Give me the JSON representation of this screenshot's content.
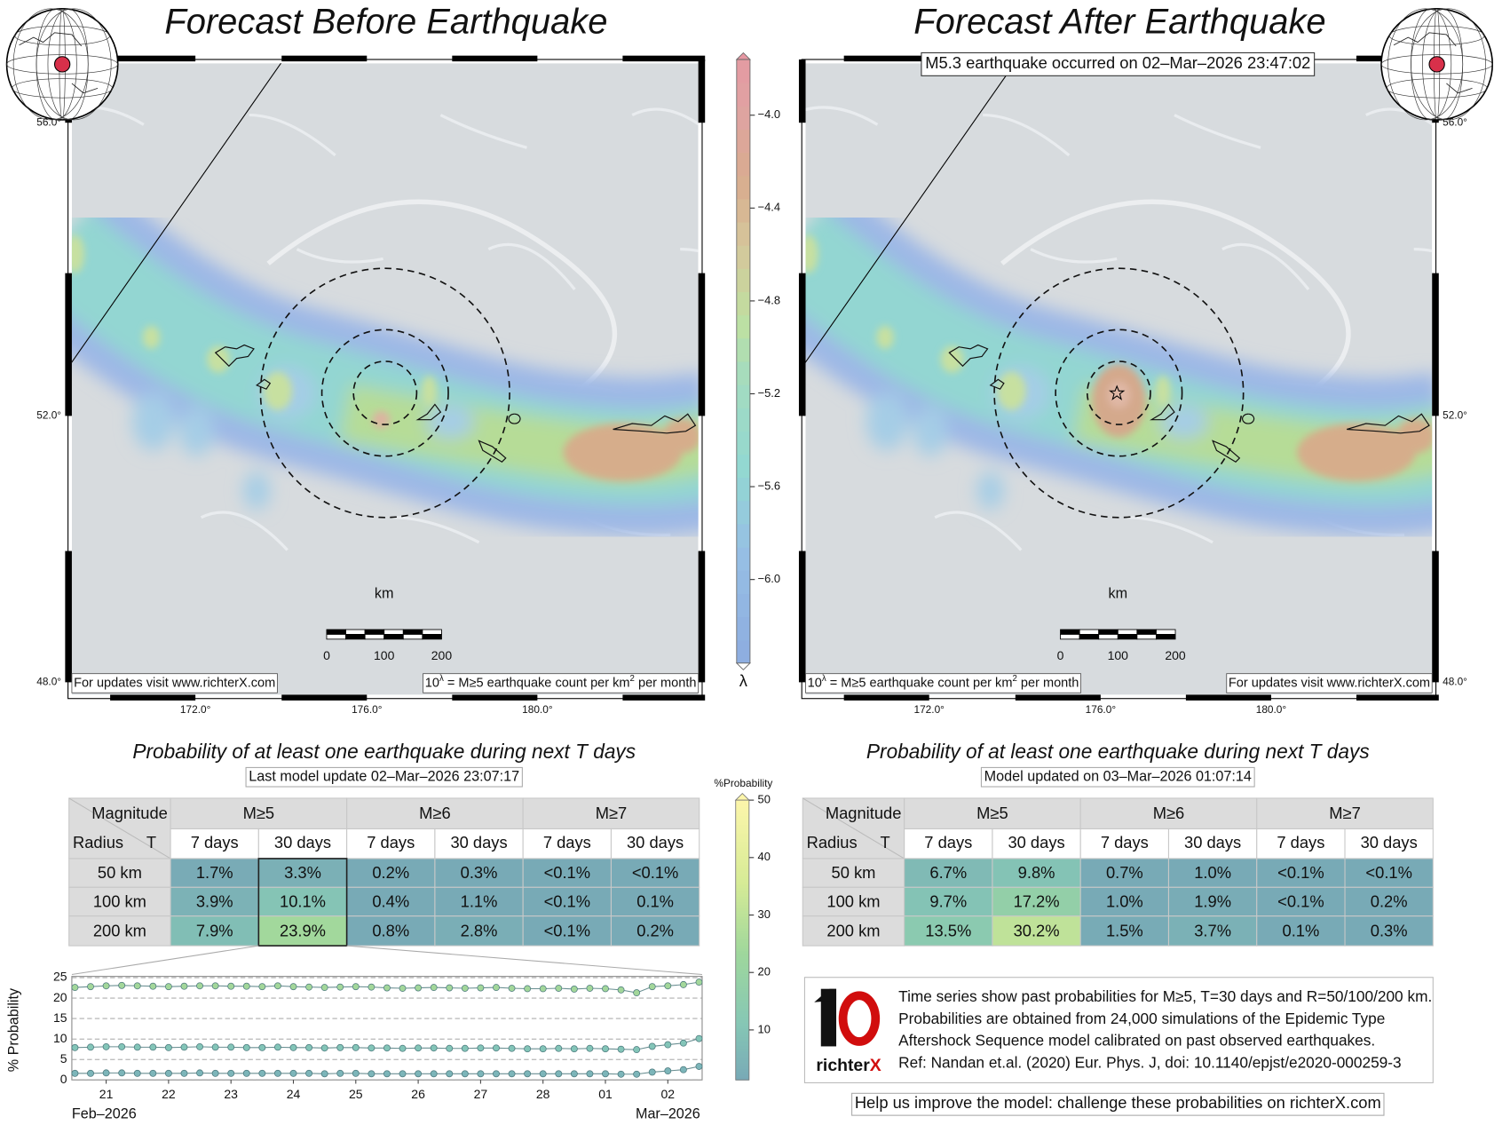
{
  "left_map": {
    "title": "Forecast Before Earthquake",
    "lat_labels": [
      "56.0°",
      "52.0°",
      "48.0°"
    ],
    "lon_labels": [
      "172.0°",
      "176.0°",
      "180.0°"
    ],
    "scale_unit": "km",
    "scale_labels": [
      "0",
      "100",
      "200"
    ],
    "notice": "For updates visit www.richterX.com",
    "legend_note": [
      "10",
      "λ",
      " = M≥5 earthquake count per km",
      "2",
      " per month"
    ]
  },
  "right_map": {
    "title": "Forecast After Earthquake",
    "event": "M5.3 earthquake occurred on 02–Mar–2026 23:47:02",
    "lat_labels": [
      "56.0°",
      "52.0°",
      "48.0°"
    ],
    "lon_labels": [
      "172.0°",
      "176.0°",
      "180.0°"
    ],
    "scale_unit": "km",
    "scale_labels": [
      "0",
      "100",
      "200"
    ],
    "notice": "For updates visit www.richterX.com",
    "legend_note": [
      "10",
      "λ",
      " = M≥5 earthquake count per km",
      "2",
      " per month"
    ]
  },
  "colorbar": {
    "label": "λ",
    "lim": [
      -6.36,
      -3.76
    ],
    "ticks": [
      {
        "value": -4.0,
        "label": "−4.0"
      },
      {
        "value": -4.4,
        "label": "−4.4"
      },
      {
        "value": -4.8,
        "label": "−4.8"
      },
      {
        "value": -5.2,
        "label": "−5.2"
      },
      {
        "value": -5.6,
        "label": "−5.6"
      },
      {
        "value": -6.0,
        "label": "−6.0"
      }
    ]
  },
  "prob_colorbar": {
    "label": "%Probability",
    "lim": [
      1.3,
      50
    ],
    "ticks": [
      10,
      20,
      30,
      40,
      50
    ]
  },
  "left_table": {
    "title": "Probability of at least one earthquake during next T days",
    "update": "Last model update 02–Mar–2026 23:07:17",
    "header": [
      "Magnitude",
      "M≥5",
      "M≥6",
      "M≥7"
    ],
    "subheader": [
      "Radius",
      "T",
      "7 days",
      "30 days",
      "7 days",
      "30 days",
      "7 days",
      "30 days"
    ],
    "rows": [
      [
        "50 km",
        "1.7%",
        "3.3%",
        "0.2%",
        "0.3%",
        "<0.1%",
        "<0.1%"
      ],
      [
        "100 km",
        "3.9%",
        "10.1%",
        "0.4%",
        "1.1%",
        "<0.1%",
        "0.1%"
      ],
      [
        "200 km",
        "7.9%",
        "23.9%",
        "0.8%",
        "2.8%",
        "<0.1%",
        "0.2%"
      ]
    ]
  },
  "right_table": {
    "title": "Probability of at least one earthquake during next T days",
    "update": "Model updated on 03–Mar–2026 01:07:14",
    "header": [
      "Magnitude",
      "M≥5",
      "M≥6",
      "M≥7"
    ],
    "subheader": [
      "Radius",
      "T",
      "7 days",
      "30 days",
      "7 days",
      "30 days",
      "7 days",
      "30 days"
    ],
    "rows": [
      [
        "50 km",
        "6.7%",
        "9.8%",
        "0.7%",
        "1.0%",
        "<0.1%",
        "<0.1%"
      ],
      [
        "100 km",
        "9.7%",
        "17.2%",
        "1.0%",
        "1.9%",
        "<0.1%",
        "0.2%"
      ],
      [
        "200 km",
        "13.5%",
        "30.2%",
        "1.5%",
        "3.7%",
        "0.1%",
        "0.3%"
      ]
    ]
  },
  "chart_data": {
    "type": "line",
    "ylabel": "% Probability",
    "month_labels": [
      "Feb–2026",
      "Mar–2026"
    ],
    "x": [
      20.5,
      20.75,
      21,
      21.25,
      21.5,
      21.75,
      22,
      22.25,
      22.5,
      22.75,
      23,
      23.25,
      23.5,
      23.75,
      24,
      24.25,
      24.5,
      24.75,
      25,
      25.25,
      25.5,
      25.75,
      26,
      26.25,
      26.5,
      26.75,
      27,
      27.25,
      27.5,
      27.75,
      28,
      28.25,
      28.5,
      28.75,
      29,
      29.25,
      29.5,
      29.75,
      30,
      30.25,
      30.5
    ],
    "xlim": [
      20.45,
      30.55
    ],
    "xticks": [
      21,
      22,
      23,
      24,
      25,
      26,
      27,
      28,
      {
        "value": 29,
        "label": "01"
      },
      {
        "value": 30,
        "label": "02"
      }
    ],
    "ylim": [
      0,
      25.3
    ],
    "yticks": [
      0,
      5,
      10,
      15,
      20,
      25
    ],
    "grid": true,
    "series": [
      {
        "color": "#a3d79a",
        "values": [
          22.6,
          22.8,
          23.0,
          23.1,
          23.0,
          22.9,
          22.8,
          22.9,
          23.0,
          23.0,
          22.9,
          22.9,
          22.8,
          23.0,
          22.8,
          22.7,
          22.6,
          22.7,
          22.8,
          22.7,
          22.5,
          22.4,
          22.5,
          22.6,
          22.5,
          22.4,
          22.5,
          22.6,
          22.4,
          22.3,
          22.3,
          22.4,
          22.2,
          22.4,
          22.3,
          22.0,
          21.3,
          22.8,
          23.0,
          23.3,
          23.9
        ]
      },
      {
        "color": "#83c5b8",
        "values": [
          7.9,
          8.0,
          8.1,
          8.1,
          8.0,
          8.0,
          7.9,
          8.0,
          8.1,
          8.0,
          8.0,
          7.9,
          7.9,
          8.0,
          7.9,
          7.9,
          7.8,
          7.9,
          7.9,
          7.8,
          7.8,
          7.7,
          7.8,
          7.8,
          7.7,
          7.7,
          7.8,
          7.8,
          7.7,
          7.6,
          7.6,
          7.7,
          7.6,
          7.7,
          7.6,
          7.5,
          7.4,
          8.2,
          8.6,
          9.0,
          10.1
        ]
      },
      {
        "color": "#7cb5b9",
        "values": [
          1.6,
          1.6,
          1.7,
          1.7,
          1.6,
          1.6,
          1.6,
          1.6,
          1.7,
          1.6,
          1.6,
          1.6,
          1.6,
          1.6,
          1.6,
          1.6,
          1.5,
          1.6,
          1.6,
          1.5,
          1.5,
          1.5,
          1.5,
          1.5,
          1.5,
          1.5,
          1.5,
          1.5,
          1.5,
          1.5,
          1.5,
          1.5,
          1.5,
          1.5,
          1.5,
          1.4,
          1.4,
          1.9,
          2.2,
          2.5,
          3.3
        ]
      }
    ]
  },
  "info": {
    "lines": [
      "Time series show past probabilities for M≥5, T=30 days and R=50/100/200 km.",
      "Probabilities are obtained from 24,000 simulations of the Epidemic Type",
      "Aftershock Sequence model calibrated on past observed earthquakes.",
      "Ref: Nandan et.al. (2020) Eur. Phys. J, doi: 10.1140/epjst/e2020-000259-3"
    ],
    "logo": [
      "richter",
      "X"
    ],
    "footer": "Help us improve the model: challenge these probabilities on richterX.com"
  }
}
